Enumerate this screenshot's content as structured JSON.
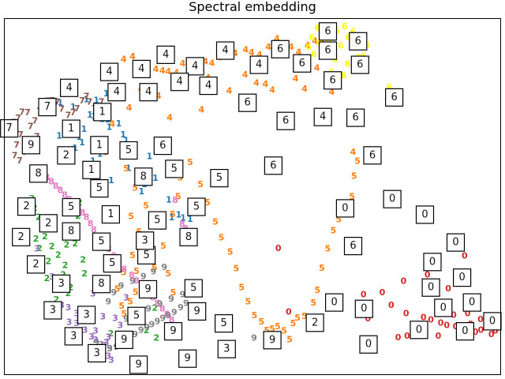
{
  "chart_data": {
    "type": "scatter",
    "title": "Spectral embedding",
    "xlabel": "",
    "ylabel": "",
    "xlim": [
      0,
      100
    ],
    "ylim": [
      0,
      100
    ],
    "grid": false,
    "ticks": false,
    "colors": {
      "0": "#d62728",
      "1": "#1f77b4",
      "2": "#2ca02c",
      "3": "#9467bd",
      "4": "#ff7f0e",
      "5": "#ff7f0e",
      "6": "#ffff00",
      "7": "#8c564b",
      "8": "#e377c2",
      "9": "#7f7f7f"
    },
    "series": [
      {
        "label": "0",
        "x": [
          55.2,
          57.3,
          78.0,
          81.0,
          84.5,
          86.0,
          88.0,
          89.2,
          91.0,
          92.3,
          94.0,
          95.0,
          96.1,
          97.4,
          98.2,
          99.0,
          79.4,
          83.0,
          87.5,
          90.6,
          93.4,
          96.0,
          80.5,
          85.3,
          89.5,
          92.8,
          72.4,
          76.2,
          81.2,
          73.3
        ],
        "y": [
          35.5,
          17.6,
          19.5,
          17.1,
          16.0,
          15.3,
          14.5,
          13.8,
          13.4,
          12.8,
          14.1,
          11.9,
          12.5,
          13.3,
          11.2,
          12.2,
          10.3,
          12.6,
          10.8,
          16.7,
          17.1,
          15.4,
          26.2,
          28.0,
          24.1,
          33.3,
          22.4,
          23.0,
          10.8,
          15.7
        ]
      },
      {
        "label": "1",
        "x": [
          11.2,
          13.8,
          16.5,
          17.2,
          18.0,
          19.6,
          20.8,
          21.1,
          23.9,
          24.5,
          33.1,
          29.2,
          28.2,
          30.4,
          35.1,
          36.0,
          37.4,
          33.7,
          18.5,
          20.5,
          22.8,
          16.0,
          15.0,
          12.6,
          11.0,
          17.8,
          19.2,
          25.0,
          23.0,
          21.5,
          27.6,
          15.6,
          14.2
        ],
        "y": [
          76.5,
          75.2,
          77.3,
          73.0,
          72.6,
          71.8,
          71.7,
          69.6,
          67.5,
          65.8,
          49.1,
          61.3,
          53.4,
          55.2,
          44.9,
          44.0,
          43.7,
          44.1,
          77.1,
          79.0,
          80.0,
          69.0,
          66.8,
          70.0,
          67.1,
          60.0,
          62.0,
          58.0,
          70.6,
          54.5,
          51.4,
          65.2,
          63.7
        ]
      },
      {
        "label": "2",
        "x": [
          5.5,
          6.0,
          6.8,
          7.4,
          8.1,
          9.5,
          10.8,
          12.2,
          12.5,
          13.6,
          14.8,
          15.1,
          8.8,
          10.1,
          11.8,
          13.3,
          6.3,
          7.0,
          14.2,
          9.1,
          16.1,
          15.8,
          33.6,
          30.6,
          28.6,
          21.4,
          30.3,
          8.5,
          10.4,
          12.8
        ],
        "y": [
          49.5,
          46.8,
          44.2,
          41.6,
          38.8,
          36.0,
          33.6,
          30.7,
          36.5,
          40.2,
          44.6,
          48.3,
          31.8,
          25.6,
          28.0,
          24.4,
          38.1,
          35.4,
          36.8,
          43.0,
          28.3,
          32.2,
          13.8,
          10.2,
          12.3,
          11.5,
          18.7,
          27.0,
          21.0,
          22.8
        ]
      },
      {
        "label": "3",
        "x": [
          11.5,
          12.8,
          14.5,
          14.5,
          16.2,
          17.5,
          18.3,
          19.5,
          20.5,
          20.9,
          21.2,
          21.5,
          12.6,
          15.0,
          18.3,
          20.9,
          22.3,
          23.3,
          23.6,
          13.0,
          19.8,
          17.8,
          24.5,
          9.5,
          6.5
        ],
        "y": [
          19.5,
          18.8,
          17.1,
          14.3,
          12.4,
          10.6,
          9.7,
          8.3,
          8.9,
          5.1,
          7.2,
          4.0,
          12.0,
          16.5,
          12.2,
          10.4,
          15.8,
          13.8,
          9.3,
          14.7,
          16.2,
          22.7,
          21.6,
          27.4,
          35.3
        ]
      },
      {
        "label": "4",
        "x": [
          24.0,
          25.8,
          27.0,
          28.6,
          30.5,
          31.8,
          33.0,
          34.6,
          35.9,
          37.4,
          38.7,
          40.5,
          41.8,
          43.3,
          44.8,
          46.5,
          48.6,
          49.8,
          51.4,
          53.2,
          54.9,
          56.4,
          57.8,
          59.3,
          61.1,
          62.6,
          64.0,
          63.0,
          58.7,
          52.6,
          45.3,
          39.7,
          33.3,
          25.1,
          21.7,
          20.5,
          19.3,
          36.2,
          34.0,
          31.0,
          27.5,
          48.5,
          50.8,
          54.0,
          60.5,
          66.0,
          70.3,
          41.0,
          38.2
        ],
        "y": [
          88.7,
          89.5,
          87.2,
          86.0,
          85.9,
          85.5,
          85.2,
          84.9,
          87.4,
          87.7,
          88.2,
          88.0,
          87.6,
          89.1,
          90.3,
          90.3,
          91.3,
          90.6,
          89.9,
          92.1,
          94.4,
          91.6,
          92.1,
          90.7,
          92.6,
          93.8,
          93.4,
          86.2,
          83.2,
          81.7,
          79.8,
          74.4,
          72.2,
          75.0,
          70.5,
          72.6,
          74.4,
          80.6,
          82.4,
          78.3,
          80.2,
          84.3,
          82.0,
          80.0,
          80.3,
          79.5,
          62.6,
          83.5,
          85.2
        ]
      },
      {
        "label": "5",
        "x": [
          20.4,
          24.5,
          26.3,
          28.5,
          25.5,
          27.1,
          25.8,
          24.0,
          22.7,
          23.6,
          24.1,
          25.3,
          26.4,
          26.6,
          28.1,
          31.7,
          33.9,
          35.0,
          35.4,
          37.4,
          39.5,
          40.9,
          42.5,
          43.7,
          45.5,
          46.7,
          47.8,
          49.1,
          50.4,
          51.8,
          52.9,
          54.0,
          55.1,
          56.4,
          57.5,
          58.2,
          59.1,
          60.5,
          61.4,
          62.3,
          63.1,
          64.0,
          65.2,
          66.3,
          67.4,
          69.5,
          70.1,
          70.5,
          71.2,
          30.2,
          32.0,
          33.0,
          34.0,
          39.0,
          27.5
        ],
        "y": [
          62.5,
          57.9,
          52.5,
          47.4,
          44.5,
          40.1,
          33.5,
          28.7,
          24.0,
          19.2,
          17.0,
          20.5,
          23.1,
          29.0,
          35.4,
          41.5,
          45.0,
          50.0,
          55.3,
          59.7,
          53.4,
          48.3,
          42.9,
          38.4,
          34.5,
          29.8,
          24.5,
          20.4,
          16.6,
          14.8,
          12.3,
          12.8,
          13.4,
          12.2,
          9.8,
          14.3,
          15.9,
          16.3,
          14.7,
          20.1,
          23.7,
          29.9,
          35.3,
          40.4,
          43.6,
          45.6,
          50.0,
          55.8,
          60.0,
          30.0,
          36.1,
          28.3,
          23.0,
          16.6,
          31.9
        ]
      },
      {
        "label": "6",
        "x": [
          62.0,
          63.4,
          64.8,
          66.2,
          67.8,
          69.3,
          70.3,
          68.6,
          67.0,
          65.3,
          64.0,
          63.1,
          61.3,
          62.4,
          66.7,
          69.2,
          71.3,
          73.1,
          72.4,
          70.6,
          68.4,
          66.0,
          77.6
        ],
        "y": [
          94.8,
          93.1,
          91.7,
          90.5,
          92.5,
          94.8,
          96.5,
          97.9,
          96.7,
          93.9,
          93.2,
          97.5,
          92.1,
          90.1,
          88.6,
          87.3,
          89.1,
          92.7,
          89.6,
          86.4,
          84.1,
          85.0,
          80.8
        ]
      },
      {
        "label": "7",
        "x": [
          1.0,
          1.8,
          2.7,
          3.5,
          4.6,
          5.2,
          6.1,
          7.0,
          7.9,
          8.6,
          9.6,
          10.6,
          11.5,
          12.8,
          13.8,
          14.6,
          15.6,
          16.5,
          17.1,
          18.1,
          19.5,
          3.2,
          2.4,
          2.0,
          4.1,
          5.0,
          6.5,
          3.0
        ],
        "y": [
          69.1,
          70.9,
          72.1,
          73.8,
          73.7,
          69.8,
          71.3,
          74.0,
          75.4,
          76.9,
          77.0,
          76.7,
          74.7,
          72.9,
          73.7,
          74.8,
          77.0,
          78.2,
          76.7,
          74.8,
          76.7,
          67.5,
          64.6,
          61.6,
          62.6,
          64.0,
          66.9,
          60.1
        ]
      },
      {
        "label": "8",
        "x": [
          6.5,
          7.5,
          8.5,
          9.4,
          10.3,
          11.2,
          12.1,
          13.0,
          14.0,
          14.9,
          15.7,
          16.5,
          17.3,
          18.0,
          19.0,
          20.0,
          21.0,
          22.0,
          23.1,
          24.1,
          25.6,
          26.6,
          27.5,
          28.7,
          29.9,
          30.8,
          31.8,
          32.7,
          33.7,
          34.8,
          35.8,
          36.5,
          37.3,
          34.4
        ],
        "y": [
          58.0,
          56.5,
          55.3,
          54.2,
          53.0,
          51.8,
          50.5,
          49.2,
          48.1,
          46.8,
          45.5,
          44.2,
          42.4,
          40.7,
          38.9,
          37.0,
          35.2,
          33.3,
          31.4,
          29.6,
          27.9,
          26.3,
          24.7,
          23.2,
          21.6,
          20.0,
          18.4,
          16.9,
          15.3,
          13.7,
          42.2,
          41.0,
          45.8,
          49.0
        ]
      },
      {
        "label": "9",
        "x": [
          18.5,
          20.0,
          21.2,
          22.5,
          23.8,
          25.0,
          26.3,
          27.5,
          28.7,
          29.7,
          30.8,
          31.9,
          33.0,
          34.2,
          35.5,
          36.6,
          24.5,
          26.8,
          29.0,
          31.3,
          33.6,
          35.9,
          22.0,
          23.5,
          25.8,
          28.0,
          30.0,
          32.2,
          50.3,
          54.2,
          20.9
        ],
        "y": [
          9.0,
          8.1,
          7.2,
          7.7,
          8.5,
          9.9,
          11.2,
          12.4,
          13.2,
          14.0,
          14.9,
          15.8,
          16.6,
          17.5,
          18.8,
          20.0,
          15.6,
          17.0,
          18.5,
          19.8,
          21.2,
          22.4,
          23.0,
          24.9,
          26.2,
          27.6,
          28.9,
          30.1,
          10.2,
          11.1,
          20.5
        ]
      }
    ],
    "thumbnails": [
      {
        "digit": "6",
        "x": 65.2,
        "y": 96.5
      },
      {
        "digit": "6",
        "x": 71.3,
        "y": 93.7
      },
      {
        "digit": "6",
        "x": 65.2,
        "y": 91.1
      },
      {
        "digit": "6",
        "x": 55.6,
        "y": 91.5
      },
      {
        "digit": "6",
        "x": 60.0,
        "y": 87.5
      },
      {
        "digit": "6",
        "x": 71.7,
        "y": 87.1
      },
      {
        "digit": "6",
        "x": 66.2,
        "y": 82.7
      },
      {
        "digit": "6",
        "x": 78.6,
        "y": 77.9
      },
      {
        "digit": "6",
        "x": 49.0,
        "y": 76.4
      },
      {
        "digit": "6",
        "x": 56.7,
        "y": 71.3
      },
      {
        "digit": "6",
        "x": 70.8,
        "y": 72.2
      },
      {
        "digit": "6",
        "x": 74.2,
        "y": 61.6
      },
      {
        "digit": "6",
        "x": 54.2,
        "y": 58.7
      },
      {
        "digit": "6",
        "x": 31.9,
        "y": 64.3
      },
      {
        "digit": "6",
        "x": 70.3,
        "y": 36.1
      },
      {
        "digit": "4",
        "x": 32.5,
        "y": 89.9
      },
      {
        "digit": "4",
        "x": 44.5,
        "y": 91.1
      },
      {
        "digit": "4",
        "x": 51.3,
        "y": 87.1
      },
      {
        "digit": "4",
        "x": 38.4,
        "y": 86.7
      },
      {
        "digit": "4",
        "x": 27.6,
        "y": 85.9
      },
      {
        "digit": "4",
        "x": 21.1,
        "y": 85.1
      },
      {
        "digit": "4",
        "x": 35.3,
        "y": 82.3
      },
      {
        "digit": "4",
        "x": 13.0,
        "y": 80.6
      },
      {
        "digit": "4",
        "x": 22.6,
        "y": 79.4
      },
      {
        "digit": "4",
        "x": 29.0,
        "y": 79.4
      },
      {
        "digit": "4",
        "x": 41.1,
        "y": 81.2
      },
      {
        "digit": "4",
        "x": 64.2,
        "y": 72.4
      },
      {
        "digit": "7",
        "x": 8.6,
        "y": 75.2
      },
      {
        "digit": "7",
        "x": 0.9,
        "y": 69.2
      },
      {
        "digit": "1",
        "x": 19.7,
        "y": 73.8
      },
      {
        "digit": "1",
        "x": 13.4,
        "y": 69.1
      },
      {
        "digit": "1",
        "x": 19.1,
        "y": 64.5
      },
      {
        "digit": "1",
        "x": 17.5,
        "y": 57.5
      },
      {
        "digit": "1",
        "x": 21.4,
        "y": 45.0
      },
      {
        "digit": "9",
        "x": 5.3,
        "y": 64.5
      },
      {
        "digit": "8",
        "x": 6.8,
        "y": 56.5
      },
      {
        "digit": "8",
        "x": 28.0,
        "y": 55.6
      },
      {
        "digit": "8",
        "x": 13.4,
        "y": 40.2
      },
      {
        "digit": "8",
        "x": 37.1,
        "y": 38.6
      },
      {
        "digit": "8",
        "x": 19.5,
        "y": 25.4
      },
      {
        "digit": "2",
        "x": 12.4,
        "y": 61.6
      },
      {
        "digit": "2",
        "x": 4.4,
        "y": 47.2
      },
      {
        "digit": "2",
        "x": 8.8,
        "y": 42.5
      },
      {
        "digit": "2",
        "x": 3.3,
        "y": 38.6
      },
      {
        "digit": "2",
        "x": 6.3,
        "y": 30.9
      },
      {
        "digit": "2",
        "x": 62.6,
        "y": 14.5
      },
      {
        "digit": "5",
        "x": 25.0,
        "y": 63.0
      },
      {
        "digit": "5",
        "x": 34.2,
        "y": 57.8
      },
      {
        "digit": "5",
        "x": 43.3,
        "y": 55.2
      },
      {
        "digit": "5",
        "x": 19.1,
        "y": 52.3
      },
      {
        "digit": "5",
        "x": 13.4,
        "y": 47.0
      },
      {
        "digit": "5",
        "x": 38.7,
        "y": 47.1
      },
      {
        "digit": "5",
        "x": 30.8,
        "y": 43.3
      },
      {
        "digit": "5",
        "x": 19.5,
        "y": 37.3
      },
      {
        "digit": "5",
        "x": 21.7,
        "y": 31.2
      },
      {
        "digit": "5",
        "x": 28.6,
        "y": 33.5
      },
      {
        "digit": "5",
        "x": 38.1,
        "y": 24.2
      },
      {
        "digit": "5",
        "x": 26.6,
        "y": 16.4
      },
      {
        "digit": "5",
        "x": 44.2,
        "y": 14.3
      },
      {
        "digit": "3",
        "x": 28.3,
        "y": 37.6
      },
      {
        "digit": "3",
        "x": 11.4,
        "y": 25.5
      },
      {
        "digit": "3",
        "x": 9.7,
        "y": 18.0
      },
      {
        "digit": "3",
        "x": 16.5,
        "y": 16.7
      },
      {
        "digit": "3",
        "x": 13.9,
        "y": 10.7
      },
      {
        "digit": "3",
        "x": 18.6,
        "y": 5.9
      },
      {
        "digit": "3",
        "x": 44.8,
        "y": 7.1
      },
      {
        "digit": "9",
        "x": 28.9,
        "y": 23.9
      },
      {
        "digit": "9",
        "x": 38.8,
        "y": 17.7
      },
      {
        "digit": "9",
        "x": 34.0,
        "y": 12.1
      },
      {
        "digit": "9",
        "x": 24.1,
        "y": 9.7
      },
      {
        "digit": "9",
        "x": 27.0,
        "y": 2.7
      },
      {
        "digit": "9",
        "x": 36.9,
        "y": 4.4
      },
      {
        "digit": "9",
        "x": 54.0,
        "y": 9.6
      },
      {
        "digit": "0",
        "x": 68.7,
        "y": 46.7
      },
      {
        "digit": "0",
        "x": 78.2,
        "y": 49.3
      },
      {
        "digit": "0",
        "x": 84.8,
        "y": 44.9
      },
      {
        "digit": "0",
        "x": 91.0,
        "y": 37.1
      },
      {
        "digit": "0",
        "x": 86.3,
        "y": 31.6
      },
      {
        "digit": "0",
        "x": 92.3,
        "y": 27.2
      },
      {
        "digit": "0",
        "x": 86.0,
        "y": 24.4
      },
      {
        "digit": "0",
        "x": 88.5,
        "y": 18.7
      },
      {
        "digit": "0",
        "x": 94.3,
        "y": 20.2
      },
      {
        "digit": "0",
        "x": 66.5,
        "y": 20.2
      },
      {
        "digit": "0",
        "x": 72.5,
        "y": 18.4
      },
      {
        "digit": "0",
        "x": 83.6,
        "y": 12.5
      },
      {
        "digit": "0",
        "x": 92.9,
        "y": 12.1
      },
      {
        "digit": "0",
        "x": 98.4,
        "y": 14.9
      },
      {
        "digit": "0",
        "x": 73.4,
        "y": 8.4
      }
    ]
  }
}
